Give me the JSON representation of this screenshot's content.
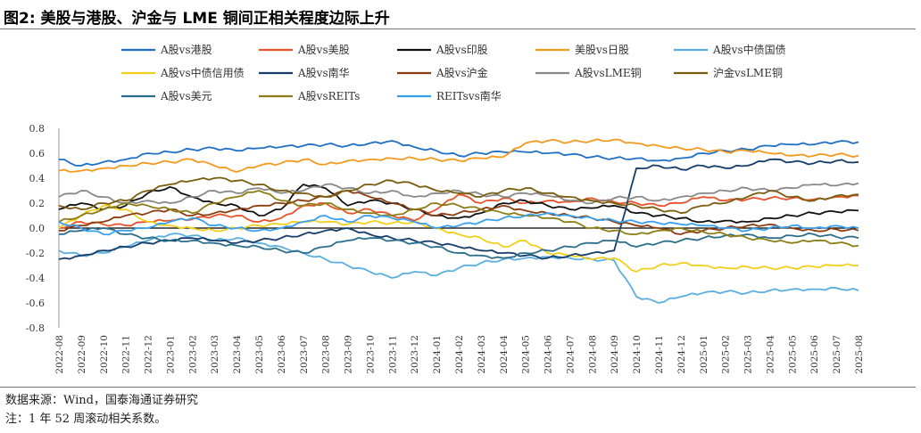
{
  "title": "图2:  美股与港股、沪金与 LME 铜间正相关程度边际上升",
  "footer": {
    "source": "数据来源：Wind，国泰海通证券研究",
    "note": "注：1 年 52 周滚动相关系数。"
  },
  "chart_data": {
    "type": "line",
    "title": "美股与港股、沪金与 LME 铜间正相关程度边际上升",
    "xlabel": "",
    "ylabel": "",
    "ylim": [
      -0.8,
      0.8
    ],
    "yticks": [
      "0.8",
      "0.6",
      "0.4",
      "0.2",
      "0.0",
      "-0.2",
      "-0.4",
      "-0.6",
      "-0.8"
    ],
    "ytick_values": [
      0.8,
      0.6,
      0.4,
      0.2,
      0.0,
      -0.2,
      -0.4,
      -0.6,
      -0.8
    ],
    "categories": [
      "2022-08",
      "2022-09",
      "2022-10",
      "2022-11",
      "2022-12",
      "2023-01",
      "2023-02",
      "2023-03",
      "2023-04",
      "2023-05",
      "2023-06",
      "2023-07",
      "2023-08",
      "2023-09",
      "2023-10",
      "2023-11",
      "2023-12",
      "2024-01",
      "2024-02",
      "2024-03",
      "2024-04",
      "2024-05",
      "2024-06",
      "2024-07",
      "2024-08",
      "2024-09",
      "2024-10",
      "2024-11",
      "2024-12",
      "2025-01",
      "2025-02",
      "2025-03",
      "2025-04",
      "2025-05",
      "2025-06",
      "2025-07",
      "2025-08"
    ],
    "series": [
      {
        "name": "A股vs港股",
        "color": "#1f6fc5",
        "values": [
          0.55,
          0.5,
          0.53,
          0.55,
          0.6,
          0.61,
          0.63,
          0.64,
          0.62,
          0.64,
          0.65,
          0.66,
          0.67,
          0.66,
          0.68,
          0.7,
          0.65,
          0.62,
          0.58,
          0.6,
          0.61,
          0.61,
          0.6,
          0.59,
          0.57,
          0.56,
          0.56,
          0.54,
          0.56,
          0.6,
          0.62,
          0.63,
          0.66,
          0.67,
          0.67,
          0.69,
          0.69
        ]
      },
      {
        "name": "A股vs美股",
        "color": "#e8522a",
        "values": [
          0.0,
          0.05,
          0.03,
          0.02,
          0.05,
          0.06,
          0.07,
          0.1,
          0.1,
          0.05,
          0.08,
          0.18,
          0.2,
          0.12,
          0.15,
          0.1,
          0.06,
          0.15,
          0.27,
          0.2,
          0.24,
          0.2,
          0.22,
          0.21,
          0.24,
          0.21,
          0.2,
          0.18,
          0.2,
          0.25,
          0.22,
          0.23,
          0.24,
          0.24,
          0.23,
          0.25,
          0.26
        ]
      },
      {
        "name": "A股vs印股",
        "color": "#111111",
        "values": [
          0.15,
          0.2,
          0.15,
          0.18,
          0.28,
          0.33,
          0.25,
          0.2,
          0.18,
          0.1,
          0.15,
          0.35,
          0.32,
          0.18,
          0.22,
          0.2,
          0.15,
          0.1,
          0.08,
          0.12,
          0.2,
          0.22,
          0.18,
          0.15,
          0.16,
          0.18,
          0.12,
          0.1,
          0.08,
          0.05,
          0.06,
          0.05,
          0.08,
          0.1,
          0.12,
          0.13,
          0.14
        ]
      },
      {
        "name": "美股vs日股",
        "color": "#f39a1e",
        "values": [
          0.46,
          0.46,
          0.48,
          0.5,
          0.52,
          0.53,
          0.55,
          0.5,
          0.45,
          0.5,
          0.52,
          0.55,
          0.51,
          0.54,
          0.55,
          0.56,
          0.56,
          0.55,
          0.54,
          0.56,
          0.57,
          0.68,
          0.7,
          0.69,
          0.7,
          0.71,
          0.68,
          0.66,
          0.64,
          0.63,
          0.61,
          0.62,
          0.6,
          0.58,
          0.58,
          0.59,
          0.58
        ]
      },
      {
        "name": "A股vs中债国债",
        "color": "#5aaee0",
        "values": [
          -0.18,
          -0.22,
          -0.2,
          -0.15,
          -0.1,
          -0.05,
          -0.06,
          -0.1,
          -0.08,
          -0.12,
          -0.15,
          -0.2,
          -0.25,
          -0.3,
          -0.35,
          -0.4,
          -0.35,
          -0.38,
          -0.32,
          -0.28,
          -0.25,
          -0.24,
          -0.23,
          -0.24,
          -0.25,
          -0.26,
          -0.55,
          -0.6,
          -0.55,
          -0.52,
          -0.51,
          -0.52,
          -0.5,
          -0.49,
          -0.49,
          -0.48,
          -0.5
        ]
      },
      {
        "name": "A股vs中债信用债",
        "color": "#f2cf1d",
        "values": [
          0.0,
          0.1,
          0.18,
          0.15,
          0.05,
          0.02,
          0.0,
          -0.02,
          0.0,
          0.02,
          0.03,
          0.05,
          0.05,
          0.03,
          0.05,
          0.04,
          0.05,
          0.0,
          -0.05,
          -0.08,
          -0.15,
          -0.1,
          -0.2,
          -0.22,
          -0.25,
          -0.24,
          -0.35,
          -0.3,
          -0.28,
          -0.3,
          -0.32,
          -0.31,
          -0.32,
          -0.32,
          -0.31,
          -0.3,
          -0.3
        ]
      },
      {
        "name": "A股vs南华",
        "color": "#143d6b",
        "values": [
          -0.25,
          -0.22,
          -0.18,
          -0.15,
          -0.12,
          -0.1,
          -0.08,
          -0.1,
          -0.12,
          -0.1,
          -0.08,
          -0.05,
          -0.02,
          0.0,
          -0.05,
          -0.08,
          -0.1,
          -0.12,
          -0.15,
          -0.18,
          -0.2,
          -0.22,
          -0.24,
          -0.22,
          -0.2,
          -0.18,
          0.48,
          0.5,
          0.47,
          0.5,
          0.48,
          0.5,
          0.55,
          0.53,
          0.52,
          0.54,
          0.53
        ]
      },
      {
        "name": "A股vs沪金",
        "color": "#8b3d10",
        "values": [
          -0.02,
          0.02,
          0.05,
          0.1,
          0.12,
          0.15,
          0.1,
          0.12,
          0.15,
          0.18,
          0.2,
          0.22,
          0.25,
          0.3,
          0.25,
          0.2,
          0.15,
          0.1,
          0.12,
          0.15,
          0.18,
          0.14,
          0.12,
          0.1,
          0.08,
          0.05,
          0.02,
          0.0,
          -0.05,
          -0.02,
          0.0,
          0.02,
          0.03,
          0.0,
          -0.02,
          -0.01,
          -0.02
        ]
      },
      {
        "name": "A股vsLME铜",
        "color": "#888888",
        "values": [
          0.25,
          0.3,
          0.25,
          0.2,
          0.22,
          0.2,
          0.25,
          0.3,
          0.28,
          0.32,
          0.28,
          0.3,
          0.35,
          0.32,
          0.28,
          0.3,
          0.25,
          0.28,
          0.3,
          0.27,
          0.25,
          0.28,
          0.26,
          0.22,
          0.2,
          0.24,
          0.25,
          0.22,
          0.25,
          0.28,
          0.3,
          0.32,
          0.3,
          0.32,
          0.35,
          0.34,
          0.36
        ]
      },
      {
        "name": "沪金vsLME铜",
        "color": "#7a5c0e",
        "values": [
          0.18,
          0.15,
          0.2,
          0.22,
          0.3,
          0.35,
          0.38,
          0.4,
          0.38,
          0.35,
          0.3,
          0.28,
          0.25,
          0.3,
          0.35,
          0.38,
          0.35,
          0.3,
          0.28,
          0.25,
          0.3,
          0.32,
          0.28,
          0.25,
          0.22,
          0.2,
          0.18,
          0.15,
          0.12,
          0.18,
          0.2,
          0.25,
          0.3,
          0.25,
          0.22,
          0.26,
          0.27
        ]
      },
      {
        "name": "A股vs美元",
        "color": "#2a6e8c",
        "values": [
          -0.05,
          -0.02,
          0.0,
          -0.05,
          -0.08,
          -0.1,
          -0.1,
          -0.12,
          -0.14,
          -0.15,
          -0.18,
          -0.2,
          -0.15,
          -0.1,
          -0.08,
          -0.1,
          -0.12,
          -0.15,
          -0.2,
          -0.22,
          -0.24,
          -0.2,
          -0.18,
          -0.15,
          -0.12,
          -0.1,
          -0.15,
          -0.12,
          -0.1,
          -0.08,
          -0.06,
          -0.05,
          -0.08,
          -0.06,
          -0.05,
          -0.07,
          -0.08
        ]
      },
      {
        "name": "A股vsREITs",
        "color": "#8c7d14",
        "values": [
          0.05,
          0.1,
          0.15,
          0.2,
          0.18,
          0.15,
          0.12,
          0.2,
          0.25,
          0.3,
          0.22,
          0.18,
          0.2,
          0.15,
          0.12,
          0.1,
          0.15,
          0.2,
          0.18,
          0.15,
          0.12,
          0.1,
          0.08,
          0.05,
          0.0,
          -0.02,
          -0.05,
          -0.02,
          0.0,
          -0.03,
          -0.05,
          -0.08,
          -0.1,
          -0.12,
          -0.1,
          -0.12,
          -0.14
        ]
      },
      {
        "name": "REITsvs南华",
        "color": "#3aa0ee",
        "values": [
          0.05,
          0.0,
          -0.05,
          -0.02,
          0.0,
          0.05,
          0.08,
          0.02,
          0.0,
          -0.02,
          0.0,
          0.05,
          0.1,
          0.05,
          0.1,
          0.08,
          0.05,
          0.0,
          0.02,
          0.05,
          0.08,
          0.1,
          0.12,
          0.1,
          0.08,
          0.06,
          0.05,
          0.04,
          0.03,
          0.02,
          0.0,
          -0.02,
          0.0,
          0.02,
          0.0,
          0.02,
          0.0
        ]
      }
    ]
  }
}
